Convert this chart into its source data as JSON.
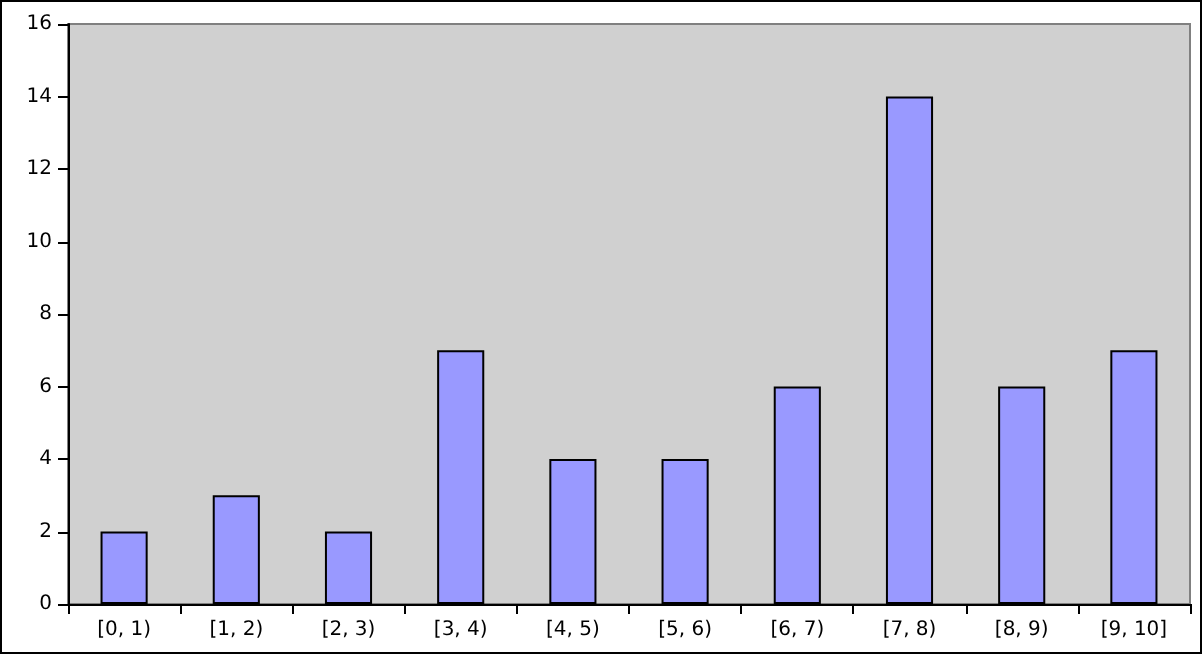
{
  "chart_data": {
    "type": "bar",
    "categories": [
      "[0, 1)",
      "[1, 2)",
      "[2, 3)",
      "[3, 4)",
      "[4, 5)",
      "[5, 6)",
      "[6, 7)",
      "[7, 8)",
      "[8, 9)",
      "[9, 10]"
    ],
    "values": [
      2,
      3,
      2,
      7,
      4,
      4,
      6,
      14,
      6,
      7
    ],
    "color": "#9999ff",
    "ylim": [
      0,
      16
    ],
    "yticks": [
      0,
      2,
      4,
      6,
      8,
      10,
      12,
      14,
      16
    ],
    "grid": false
  }
}
